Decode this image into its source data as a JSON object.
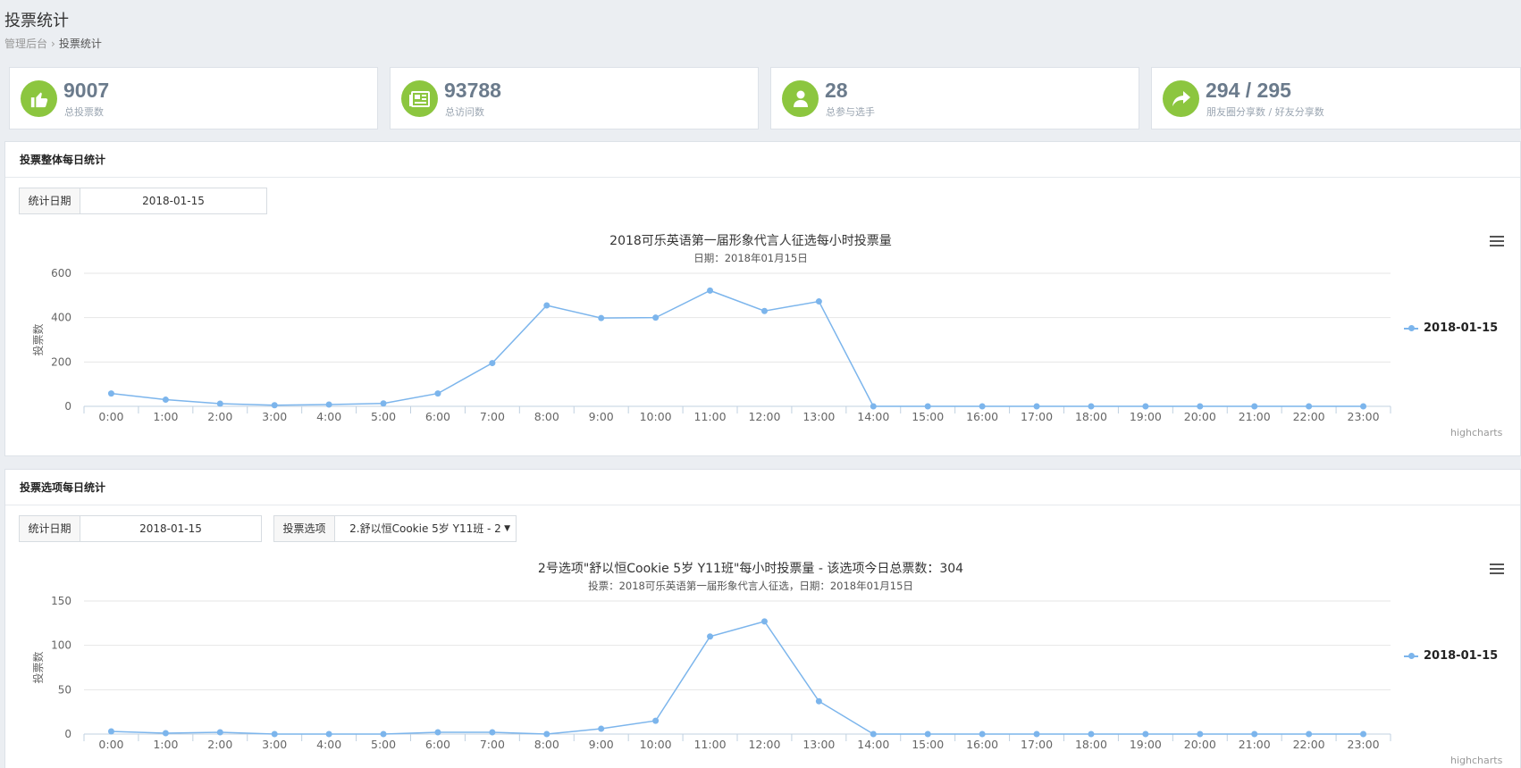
{
  "page": {
    "title": "投票统计",
    "breadcrumb": [
      "管理后台",
      "投票统计"
    ]
  },
  "stats": [
    {
      "value": "9007",
      "label": "总投票数",
      "icon": "thumbs-up-icon"
    },
    {
      "value": "93788",
      "label": "总访问数",
      "icon": "newspaper-icon"
    },
    {
      "value": "28",
      "label": "总参与选手",
      "icon": "user-icon"
    },
    {
      "value": "294 / 295",
      "label": "朋友圈分享数 / 好友分享数",
      "icon": "share-icon"
    }
  ],
  "colors": {
    "accent": "#8cc63f",
    "series": "#7cb5ec"
  },
  "panel1": {
    "title": "投票整体每日统计",
    "date_label": "统计日期",
    "date_value": "2018-01-15"
  },
  "panel2": {
    "title": "投票选项每日统计",
    "date_label": "统计日期",
    "date_value": "2018-01-15",
    "option_label": "投票选项",
    "option_value": "2.舒以恒Cookie 5岁 Y11班 - 2"
  },
  "chart_data": [
    {
      "type": "line",
      "title": "2018可乐英语第一届形象代言人征选每小时投票量",
      "subtitle": "日期：2018年01月15日",
      "ylabel": "投票数",
      "ylim": [
        0,
        600
      ],
      "yticks": [
        "0",
        "200",
        "400",
        "600"
      ],
      "categories": [
        "0:00",
        "1:00",
        "2:00",
        "3:00",
        "4:00",
        "5:00",
        "6:00",
        "7:00",
        "8:00",
        "9:00",
        "10:00",
        "11:00",
        "12:00",
        "13:00",
        "14:00",
        "15:00",
        "16:00",
        "17:00",
        "18:00",
        "19:00",
        "20:00",
        "21:00",
        "22:00",
        "23:00"
      ],
      "series": [
        {
          "name": "2018-01-15",
          "values": [
            58,
            30,
            12,
            5,
            8,
            13,
            58,
            195,
            455,
            398,
            400,
            522,
            430,
            473,
            0,
            0,
            0,
            0,
            0,
            0,
            0,
            0,
            0,
            0
          ]
        }
      ],
      "legend_position": "right",
      "credits": "highcharts"
    },
    {
      "type": "line",
      "title": "2号选项\"舒以恒Cookie 5岁 Y11班\"每小时投票量 - 该选项今日总票数：304",
      "subtitle": "投票：2018可乐英语第一届形象代言人征选，日期：2018年01月15日",
      "ylabel": "投票数",
      "ylim": [
        0,
        150
      ],
      "yticks": [
        "0",
        "50",
        "100",
        "150"
      ],
      "categories": [
        "0:00",
        "1:00",
        "2:00",
        "3:00",
        "4:00",
        "5:00",
        "6:00",
        "7:00",
        "8:00",
        "9:00",
        "10:00",
        "11:00",
        "12:00",
        "13:00",
        "14:00",
        "15:00",
        "16:00",
        "17:00",
        "18:00",
        "19:00",
        "20:00",
        "21:00",
        "22:00",
        "23:00"
      ],
      "series": [
        {
          "name": "2018-01-15",
          "values": [
            3,
            1,
            2,
            0,
            0,
            0,
            2,
            2,
            0,
            6,
            15,
            110,
            127,
            37,
            0,
            0,
            0,
            0,
            0,
            0,
            0,
            0,
            0,
            0
          ]
        }
      ],
      "legend_position": "right",
      "credits": "highcharts"
    }
  ]
}
